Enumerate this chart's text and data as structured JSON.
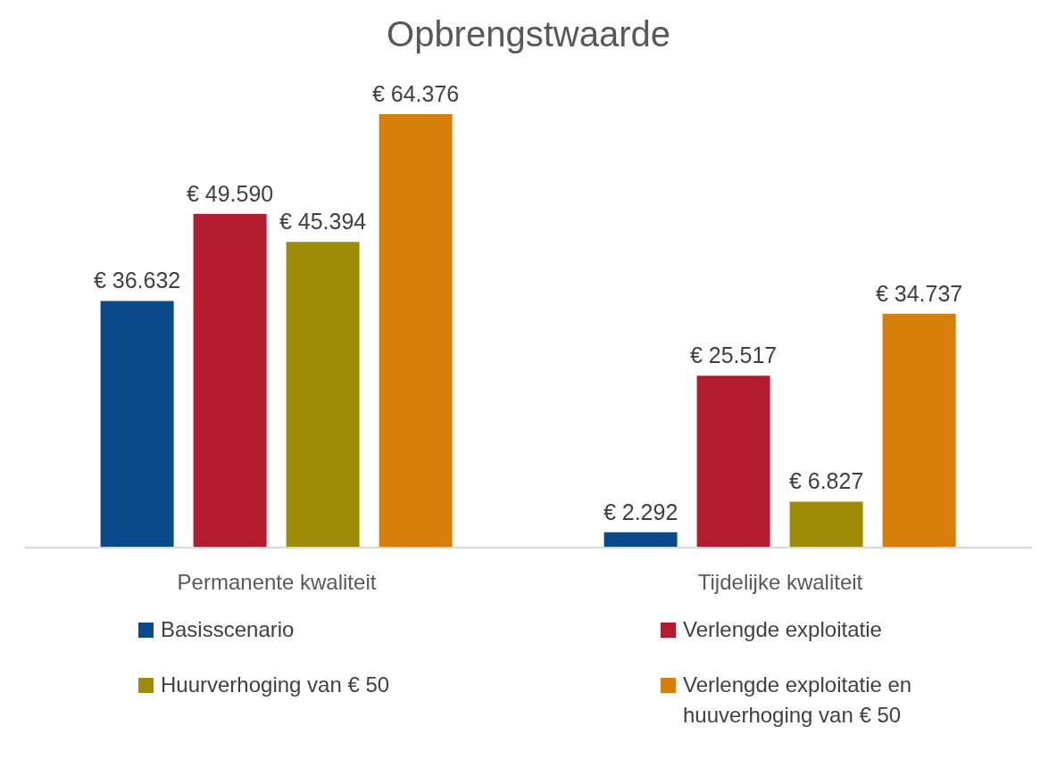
{
  "chart_data": {
    "type": "bar",
    "title": "Opbrengstwaarde",
    "categories": [
      "Permanente kwaliteit",
      "Tijdelijke kwaliteit"
    ],
    "legend": "bottom",
    "series": [
      {
        "name": "Basisscenario",
        "color": "#0a4a8a",
        "values": [
          36632,
          2292
        ],
        "value_labels": [
          "€ 36.632",
          "€ 2.292"
        ]
      },
      {
        "name": "Verlengde exploitatie",
        "color": "#b21c2e",
        "values": [
          49590,
          25517
        ],
        "value_labels": [
          "€ 49.590",
          "€ 25.517"
        ]
      },
      {
        "name": "Huurverhoging van € 50",
        "color": "#9c8c06",
        "values": [
          45394,
          6827
        ],
        "value_labels": [
          "€ 45.394",
          "€ 6.827"
        ]
      },
      {
        "name": "Verlengde exploitatie en huuverhoging van € 50",
        "color": "#d77f0b",
        "values": [
          64376,
          34737
        ],
        "value_labels": [
          "€ 64.376",
          "€ 34.737"
        ]
      }
    ]
  }
}
